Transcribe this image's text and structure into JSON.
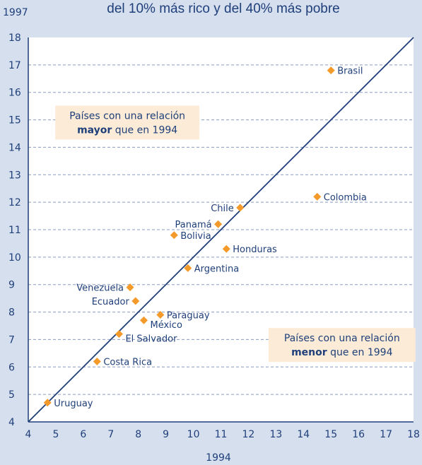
{
  "chart_data": {
    "type": "scatter",
    "title": "del 10% más rico y del 40% más pobre",
    "xlabel": "1994",
    "ylabel": "1997",
    "xlim": [
      4,
      18
    ],
    "ylim": [
      4,
      18
    ],
    "x_ticks": [
      "4",
      "5",
      "6",
      "7",
      "8",
      "9",
      "10",
      "11",
      "12",
      "13",
      "14",
      "15",
      "16",
      "17",
      "18"
    ],
    "y_ticks": [
      "4",
      "5",
      "6",
      "7",
      "8",
      "9",
      "10",
      "11",
      "12",
      "13",
      "14",
      "15",
      "16",
      "17",
      "18"
    ],
    "grid": "horizontal dashed",
    "reference_line": "diagonal y = x",
    "marker_color": "#f39a2a",
    "line_color": "#1f3f7a",
    "points": [
      {
        "label": "Brasil",
        "x": 15.0,
        "y": 16.8,
        "pos": "right"
      },
      {
        "label": "Colombia",
        "x": 14.5,
        "y": 12.2,
        "pos": "right"
      },
      {
        "label": "Chile",
        "x": 11.7,
        "y": 11.8,
        "pos": "left"
      },
      {
        "label": "Panamá",
        "x": 10.9,
        "y": 11.2,
        "pos": "left"
      },
      {
        "label": "Bolivia",
        "x": 9.3,
        "y": 10.8,
        "pos": "right"
      },
      {
        "label": "Honduras",
        "x": 11.2,
        "y": 10.3,
        "pos": "right"
      },
      {
        "label": "Argentina",
        "x": 9.8,
        "y": 9.6,
        "pos": "right"
      },
      {
        "label": "Venezuela",
        "x": 7.7,
        "y": 8.9,
        "pos": "left"
      },
      {
        "label": "Ecuador",
        "x": 7.9,
        "y": 8.4,
        "pos": "left"
      },
      {
        "label": "Paraguay",
        "x": 8.8,
        "y": 7.9,
        "pos": "right"
      },
      {
        "label": "México",
        "x": 8.2,
        "y": 7.7,
        "pos": "right-below"
      },
      {
        "label": "El Salvador",
        "x": 7.3,
        "y": 7.2,
        "pos": "right-below"
      },
      {
        "label": "Costa Rica",
        "x": 6.5,
        "y": 6.2,
        "pos": "right"
      },
      {
        "label": "Uruguay",
        "x": 4.7,
        "y": 4.7,
        "pos": "right"
      }
    ],
    "annotations": [
      {
        "line1": "Países con una relación",
        "bold": "mayor",
        "rest": " que en 1994",
        "region": "upper-left"
      },
      {
        "line1": "Países con una relación",
        "bold": "menor",
        "rest": " que en 1994",
        "region": "lower-right"
      }
    ]
  }
}
